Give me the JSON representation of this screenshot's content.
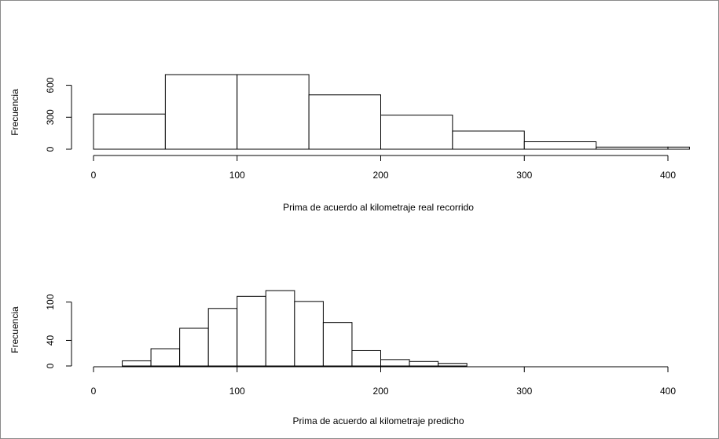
{
  "chart_data": [
    {
      "type": "bar",
      "title": "",
      "xlabel": "Prima de acuerdo al kilometraje real recorrido",
      "ylabel": "Frecuencia",
      "xlim": [
        0,
        415
      ],
      "ylim": [
        0,
        700
      ],
      "x_ticks": [
        0,
        100,
        200,
        300,
        400
      ],
      "y_ticks": [
        0,
        300,
        600
      ],
      "bins": [
        {
          "x0": 0,
          "x1": 50,
          "value": 330
        },
        {
          "x0": 50,
          "x1": 100,
          "value": 700
        },
        {
          "x0": 100,
          "x1": 150,
          "value": 700
        },
        {
          "x0": 150,
          "x1": 200,
          "value": 510
        },
        {
          "x0": 200,
          "x1": 250,
          "value": 320
        },
        {
          "x0": 250,
          "x1": 300,
          "value": 170
        },
        {
          "x0": 300,
          "x1": 350,
          "value": 70
        },
        {
          "x0": 350,
          "x1": 400,
          "value": 20
        },
        {
          "x0": 400,
          "x1": 415,
          "value": 20
        }
      ]
    },
    {
      "type": "bar",
      "title": "",
      "xlabel": "Prima de acuerdo al kilometraje predicho",
      "ylabel": "Frecuencia",
      "xlim": [
        0,
        400
      ],
      "ylim": [
        0,
        118
      ],
      "x_ticks": [
        0,
        100,
        200,
        300,
        400
      ],
      "y_ticks": [
        0,
        40,
        100
      ],
      "bins": [
        {
          "x0": 20,
          "x1": 40,
          "value": 8
        },
        {
          "x0": 40,
          "x1": 60,
          "value": 27
        },
        {
          "x0": 60,
          "x1": 80,
          "value": 59
        },
        {
          "x0": 80,
          "x1": 100,
          "value": 90
        },
        {
          "x0": 100,
          "x1": 120,
          "value": 109
        },
        {
          "x0": 120,
          "x1": 140,
          "value": 118
        },
        {
          "x0": 140,
          "x1": 160,
          "value": 101
        },
        {
          "x0": 160,
          "x1": 180,
          "value": 68
        },
        {
          "x0": 180,
          "x1": 200,
          "value": 24
        },
        {
          "x0": 200,
          "x1": 220,
          "value": 10
        },
        {
          "x0": 220,
          "x1": 240,
          "value": 7
        },
        {
          "x0": 240,
          "x1": 260,
          "value": 4
        }
      ]
    }
  ]
}
